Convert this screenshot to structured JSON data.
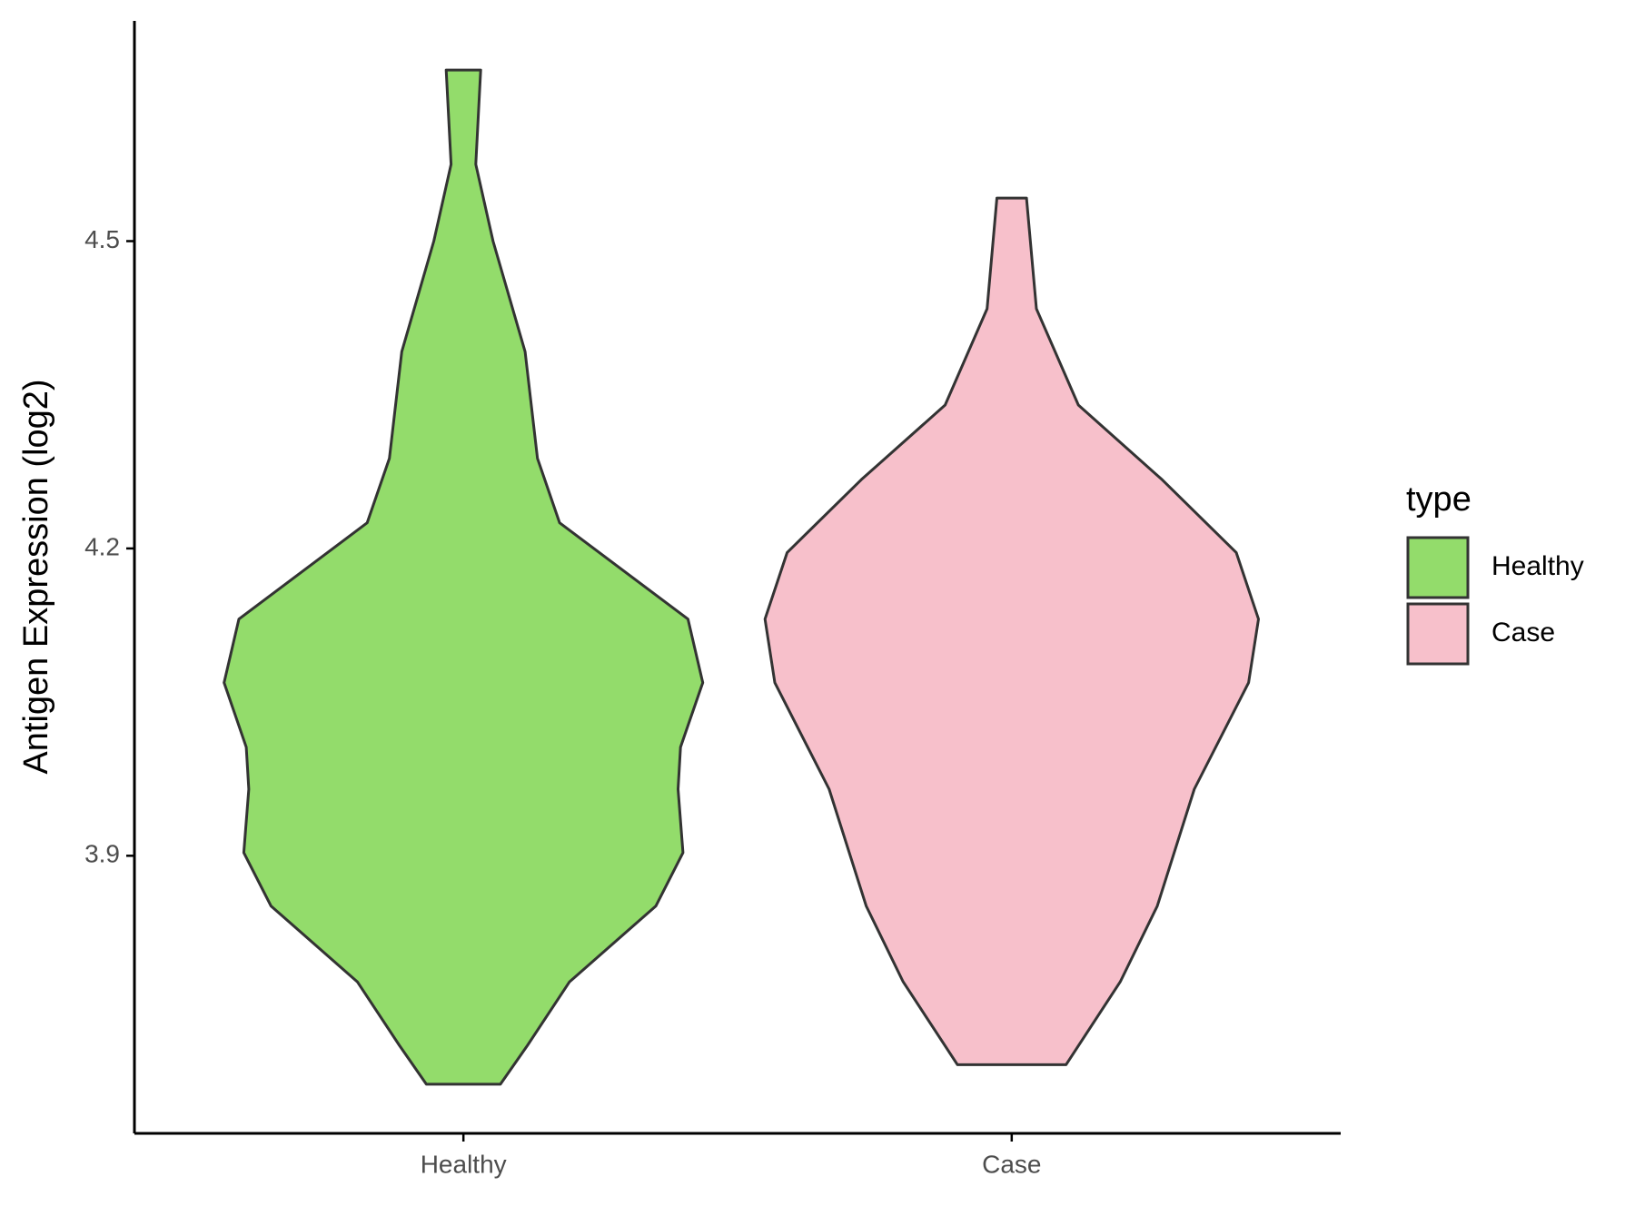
{
  "chart_data": {
    "type": "violin",
    "y_label": "Antigen Expression (log2)",
    "categories": [
      "Healthy",
      "Case"
    ],
    "legend_title": "type",
    "legend_position": "right",
    "ylim": [
      3.629,
      4.715
    ],
    "yticks": [
      3.9,
      4.2,
      4.5
    ],
    "grid": false,
    "series": [
      {
        "name": "Healthy",
        "color": "#93dc6b",
        "y": [
          4.667,
          4.575,
          4.5,
          4.392,
          4.288,
          4.225,
          4.131,
          4.069,
          4.006,
          3.965,
          3.903,
          3.851,
          3.777,
          3.715,
          3.677
        ],
        "density": [
          0.07,
          0.05,
          0.12,
          0.25,
          0.3,
          0.39,
          0.91,
          0.97,
          0.88,
          0.87,
          0.89,
          0.78,
          0.43,
          0.26,
          0.15
        ]
      },
      {
        "name": "Case",
        "color": "#f7c0cb",
        "y": [
          4.542,
          4.434,
          4.34,
          4.267,
          4.196,
          4.131,
          4.069,
          3.965,
          3.851,
          3.777,
          3.696
        ],
        "density": [
          0.06,
          0.1,
          0.27,
          0.61,
          0.91,
          1.0,
          0.96,
          0.74,
          0.59,
          0.44,
          0.22
        ]
      }
    ]
  }
}
